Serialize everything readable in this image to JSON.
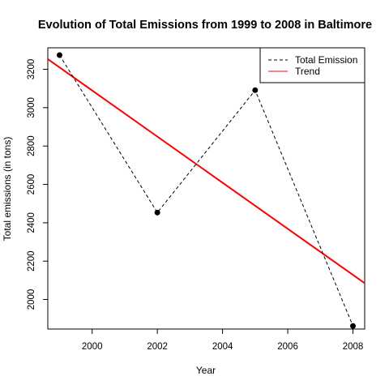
{
  "chart_data": {
    "type": "line",
    "title": "Evolution of Total Emissions from 1999 to 2008 in Baltimore",
    "xlabel": "Year",
    "ylabel": "Total emissions (in tons)",
    "xlim": [
      1998.64,
      2008.36
    ],
    "ylim": [
      1846,
      3312
    ],
    "x_ticks": [
      2000,
      2002,
      2004,
      2006,
      2008
    ],
    "y_ticks": [
      2000,
      2200,
      2400,
      2600,
      2800,
      3000,
      3200
    ],
    "grid": false,
    "legend_position": "top-right",
    "series": [
      {
        "name": "Total Emission",
        "style": "dashed",
        "markers": "filled-circle",
        "color": "#000000",
        "x": [
          1999,
          2002,
          2005,
          2008
        ],
        "y": [
          3274,
          2453,
          3091,
          1862
        ]
      },
      {
        "name": "Trend",
        "style": "solid",
        "color": "#ff0000",
        "x": [
          1998.64,
          2008.36
        ],
        "y": [
          3253,
          2085
        ]
      }
    ]
  }
}
